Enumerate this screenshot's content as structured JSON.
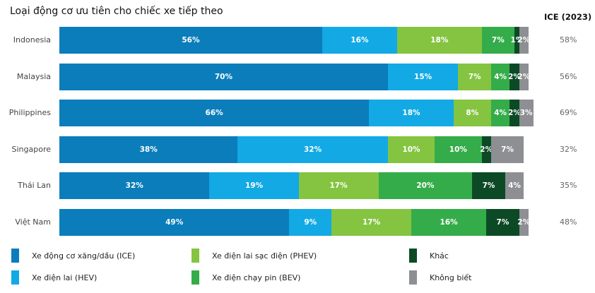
{
  "header": {
    "title": "Loại động cơ ưu tiên cho chiếc xe tiếp theo",
    "ice_column_title": "ICE (2023)"
  },
  "colors": {
    "ICE": "#0b7dba",
    "HEV": "#12a9e5",
    "PHEV": "#84c441",
    "BEV": "#35ac4a",
    "Other": "#0c4a26",
    "Unknown": "#8d8f93"
  },
  "legend": [
    {
      "key": "ICE",
      "label": "Xe động cơ xăng/dầu (ICE)",
      "color": "#0b7dba"
    },
    {
      "key": "HEV",
      "label": "Xe điện lai (HEV)",
      "color": "#12a9e5"
    },
    {
      "key": "PHEV",
      "label": "Xe điện lai sạc điện (PHEV)",
      "color": "#84c441"
    },
    {
      "key": "BEV",
      "label": "Xe điện chạy pin (BEV)",
      "color": "#35ac4a"
    },
    {
      "key": "Other",
      "label": "Khác",
      "color": "#0c4a26"
    },
    {
      "key": "Unknown",
      "label": "Không biết",
      "color": "#8d8f93"
    }
  ],
  "rows": [
    {
      "country": "Indonesia",
      "ice_2023": "58%",
      "labels": [
        "56%",
        "16%",
        "18%",
        "7%",
        "1%",
        "2%"
      ]
    },
    {
      "country": "Malaysia",
      "ice_2023": "56%",
      "labels": [
        "70%",
        "15%",
        "7%",
        "4%",
        "2%",
        "2%"
      ]
    },
    {
      "country": "Philippines",
      "ice_2023": "69%",
      "labels": [
        "66%",
        "18%",
        "8%",
        "4%",
        "2%",
        "3%"
      ]
    },
    {
      "country": "Singapore",
      "ice_2023": "32%",
      "labels": [
        "38%",
        "32%",
        "10%",
        "10%",
        "2%",
        "7%"
      ]
    },
    {
      "country": "Thái Lan",
      "ice_2023": "35%",
      "labels": [
        "32%",
        "19%",
        "17%",
        "20%",
        "7%",
        "4%"
      ]
    },
    {
      "country": "Việt Nam",
      "ice_2023": "48%",
      "labels": [
        "49%",
        "9%",
        "17%",
        "16%",
        "7%",
        "2%"
      ]
    }
  ],
  "chart_data": {
    "type": "bar",
    "orientation": "horizontal",
    "stacked": true,
    "title": "Loại động cơ ưu tiên cho chiếc xe tiếp theo",
    "xlabel": "",
    "ylabel": "",
    "categories": [
      "Indonesia",
      "Malaysia",
      "Philippines",
      "Singapore",
      "Thái Lan",
      "Việt Nam"
    ],
    "series": [
      {
        "name": "Xe động cơ xăng/dầu (ICE)",
        "color": "#0b7dba",
        "values": [
          56,
          70,
          66,
          38,
          32,
          49
        ]
      },
      {
        "name": "Xe điện lai (HEV)",
        "color": "#12a9e5",
        "values": [
          16,
          15,
          18,
          32,
          19,
          9
        ]
      },
      {
        "name": "Xe điện lai sạc điện (PHEV)",
        "color": "#84c441",
        "values": [
          18,
          7,
          8,
          10,
          17,
          17
        ]
      },
      {
        "name": "Xe điện chạy pin (BEV)",
        "color": "#35ac4a",
        "values": [
          7,
          4,
          4,
          10,
          20,
          16
        ]
      },
      {
        "name": "Khác",
        "color": "#0c4a26",
        "values": [
          1,
          2,
          2,
          2,
          7,
          7
        ]
      },
      {
        "name": "Không biết",
        "color": "#8d8f93",
        "values": [
          2,
          2,
          3,
          7,
          4,
          2
        ]
      }
    ],
    "side_column": {
      "title": "ICE (2023)",
      "values": [
        58,
        56,
        69,
        32,
        35,
        48
      ]
    },
    "unit": "%",
    "grid": false,
    "legend_position": "bottom"
  }
}
